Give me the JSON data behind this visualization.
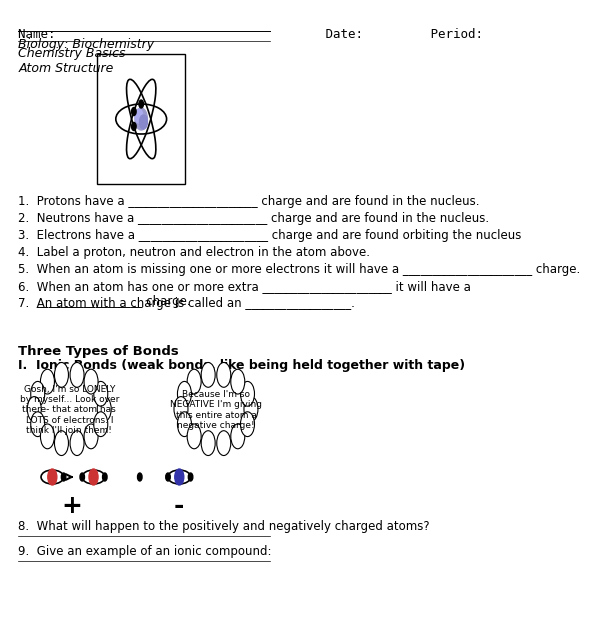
{
  "title_line": "Name:                                    Date:         Period:",
  "line2": "Biology: Biochemistry",
  "line3": "Chemistry Basics",
  "section1": "Atom Structure",
  "questions": [
    "1.  Protons have a ______________________ charge and are found in the nucleus.",
    "2.  Neutrons have a ______________________ charge and are found in the nucleus.",
    "3.  Electrons have a ______________________ charge and are found orbiting the nucleus",
    "4.  Label a proton, neutron and electron in the atom above.",
    "5.  When an atom is missing one or more electrons it will have a ______________________ charge.",
    "6.  When an atom has one or more extra ______________________ it will have a\n     __________________ charge.",
    "7.  An atom with a charge is called an __________________."
  ],
  "section2_title": "Three Types of Bonds",
  "section2_sub": "I.  Ionic Bonds (weak bonds, like being held together with tape)",
  "thought1": "Gosh, I'm so LONELY\nby myself... Look over\nthere- that atom has\nLOTS of electrons. I\nthink I'll join them!",
  "thought2": "Because I'm so\nNEGATIVE I'm giving\nthis entire atom a\nnegative charge!",
  "q8": "8.  What will happen to the positively and negatively charged atoms?",
  "q9": "9.  Give an example of an ionic compound:",
  "bg": "#ffffff",
  "text_color": "#000000",
  "font_size": 9
}
